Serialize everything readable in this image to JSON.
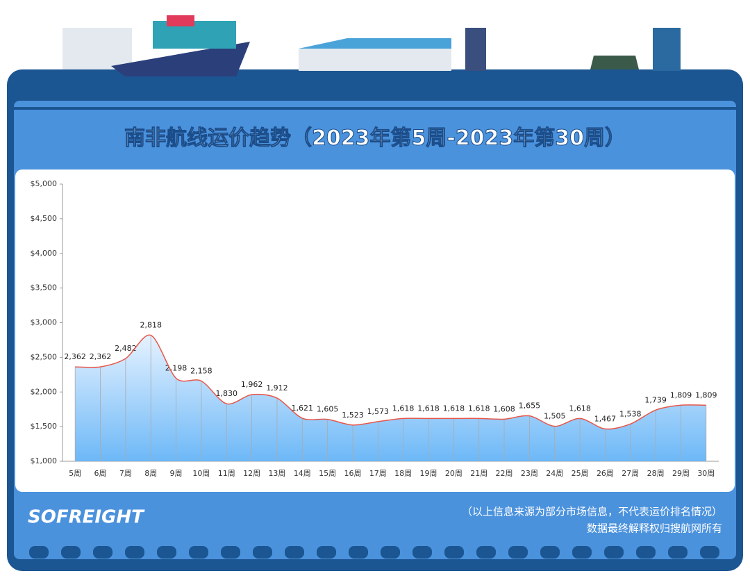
{
  "title": "南非航线运价趋势（2023年第5周-2023年第30周）",
  "logo": "SOFREIGHT",
  "notes": [
    "（以上信息来源为部分市场信息，不代表运价排名情况）",
    "数据最终解释权归搜航网所有"
  ],
  "chart_data": {
    "type": "area",
    "color": "#e8574a",
    "categories": [
      "5周",
      "6周",
      "7周",
      "8周",
      "9周",
      "10周",
      "11周",
      "12周",
      "13周",
      "14周",
      "15周",
      "16周",
      "17周",
      "18周",
      "19周",
      "20周",
      "21周",
      "22周",
      "23周",
      "24周",
      "25周",
      "26周",
      "27周",
      "28周",
      "29周",
      "30周"
    ],
    "values": [
      2362,
      2362,
      2482,
      2818,
      2198,
      2158,
      1830,
      1962,
      1912,
      1621,
      1605,
      1523,
      1573,
      1618,
      1618,
      1618,
      1618,
      1608,
      1655,
      1505,
      1618,
      1467,
      1538,
      1739,
      1809,
      1809
    ],
    "value_labels": [
      "2,362",
      "2,362",
      "2,482",
      "2,818",
      "2,198",
      "2,158",
      "1,830",
      "1,962",
      "1,912",
      "1,621",
      "1,605",
      "1,523",
      "1,573",
      "1,618",
      "1,618",
      "1,618",
      "1,618",
      "1,608",
      "1,655",
      "1,505",
      "1,618",
      "1,467",
      "1,538",
      "1,739",
      "1,809",
      "1,809"
    ],
    "ylim": [
      1000,
      5000
    ],
    "yticks": [
      {
        "value": 1000,
        "label": "$1,000"
      },
      {
        "value": 1500,
        "label": "$1,500"
      },
      {
        "value": 2000,
        "label": "$2,000"
      },
      {
        "value": 2500,
        "label": "$2,500"
      },
      {
        "value": 3000,
        "label": "$3,000"
      },
      {
        "value": 3500,
        "label": "$3,500"
      },
      {
        "value": 4000,
        "label": "$4,000"
      },
      {
        "value": 4500,
        "label": "$4,500"
      },
      {
        "value": 5000,
        "label": "$5,000"
      }
    ]
  }
}
